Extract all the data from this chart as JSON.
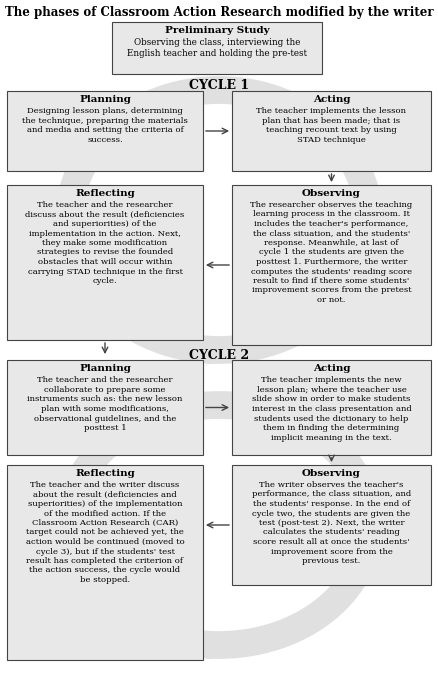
{
  "title": "The phases of Classroom Action Research modified by the writer",
  "bg_color": "#ffffff",
  "box_fc": "#e8e8e8",
  "box_ec": "#444444",
  "arrow_color": "#444444",
  "preliminary_title": "Preliminary Study",
  "preliminary_body": "Observing the class, interviewing the\nEnglish teacher and holding the pre-test",
  "cycle1_label": "CYCLE 1",
  "cycle2_label": "CYCLE 2",
  "c1_planning_title": "Planning",
  "c1_planning_body": "Designing lesson plans, determining\nthe technique, preparing the materials\nand media and setting the criteria of\nsuccess.",
  "c1_acting_title": "Acting",
  "c1_acting_body": "The teacher implements the lesson\nplan that has been made; that is\nteaching recount text by using\nSTAD technique",
  "c1_reflecting_title": "Reflecting",
  "c1_reflecting_body": "The teacher and the researcher\ndiscuss about the result (deficiencies\nand superiorities) of the\nimplementation in the action. Next,\nthey make some modification\nstrategies to revise the founded\nobstacles that will occur within\ncarrying STAD technique in the first\ncycle.",
  "c1_observing_title": "Observing",
  "c1_observing_body": "The researcher observes the teaching\nlearning process in the classroom. It\nincludes the teacher's performance,\nthe class situation, and the students'\nresponse. Meanwhile, at last of\ncycle 1 the students are given the\nposttest 1. Furthermore, the writer\ncomputes the students' reading score\nresult to find if there some students'\nimprovement scores from the pretest\nor not.",
  "c2_planning_title": "Planning",
  "c2_planning_body": "The teacher and the researcher\ncollaborate to prepare some\ninstruments such as: the new lesson\nplan with some modifications,\nobservational guidelines, and the\nposttest 1",
  "c2_acting_title": "Acting",
  "c2_acting_body": "The teacher implements the new\nlesson plan; where the teacher use\nslide show in order to make students\ninterest in the class presentation and\nstudents used the dictionary to help\nthem in finding the determining\nimplicit meaning in the text.",
  "c2_reflecting_title": "Reflecting",
  "c2_reflecting_body": "The teacher and the writer discuss\nabout the result (deficiencies and\nsuperiorities) of the implementation\nof the modified action. If the\nClassroom Action Research (CAR)\ntarget could not be achieved yet, the\naction would be continued (moved to\ncycle 3), but if the students' test\nresult has completed the criterion of\nthe action success, the cycle would\nbe stopped.",
  "c2_observing_title": "Observing",
  "c2_observing_body": "The writer observes the teacher's\nperformance, the class situation, and\nthe students' response. In the end of\ncycle two, the students are given the\ntest (post-test 2). Next, the writer\ncalculates the students' reading\nscore result all at once the students'\nimprovement score from the\nprevious test."
}
